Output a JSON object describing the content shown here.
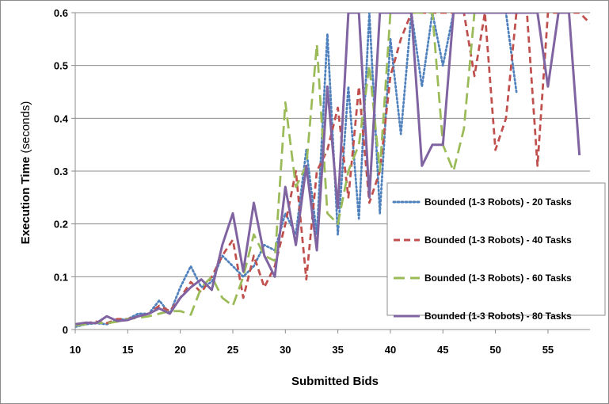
{
  "chart_data": {
    "type": "line",
    "xlabel": "Submitted Bids",
    "ylabel": "Execution Time",
    "ylabel_unit": "(seconds)",
    "xlim": [
      10,
      59
    ],
    "ylim": [
      0,
      0.6
    ],
    "x_ticks": [
      10,
      15,
      20,
      25,
      30,
      35,
      40,
      45,
      50,
      55
    ],
    "y_ticks": [
      0,
      0.1,
      0.2,
      0.3,
      0.4,
      0.5,
      0.6
    ],
    "y_tick_labels": [
      "0",
      "0.1",
      "0.2",
      "0.3",
      "0.4",
      "0.5",
      "0.6"
    ],
    "grid": "horizontal",
    "legend_position": "right",
    "series": [
      {
        "name": "Bounded (1-3 Robots) - 20 Tasks",
        "color": "#4f81bd",
        "dash": "dotted",
        "x": [
          10,
          11,
          12,
          13,
          14,
          15,
          16,
          17,
          18,
          19,
          20,
          21,
          22,
          23,
          24,
          25,
          26,
          27,
          28,
          29,
          30,
          31,
          32,
          33,
          34,
          35,
          36,
          37,
          38,
          39,
          40,
          41,
          42,
          43,
          44,
          45,
          46,
          47,
          48,
          49,
          50,
          51,
          52
        ],
        "y": [
          0.005,
          0.01,
          0.012,
          0.01,
          0.018,
          0.02,
          0.03,
          0.03,
          0.055,
          0.03,
          0.08,
          0.12,
          0.08,
          0.09,
          0.14,
          0.12,
          0.1,
          0.12,
          0.16,
          0.15,
          0.22,
          0.18,
          0.34,
          0.18,
          0.56,
          0.18,
          0.46,
          0.21,
          0.6,
          0.22,
          0.55,
          0.37,
          0.6,
          0.46,
          0.6,
          0.5,
          0.6,
          0.6,
          0.6,
          0.6,
          0.6,
          0.6,
          0.45
        ]
      },
      {
        "name": "Bounded (1-3 Robots) - 40 Tasks",
        "color": "#c0504d",
        "dash": "dashed",
        "x": [
          10,
          11,
          12,
          13,
          14,
          15,
          16,
          17,
          18,
          19,
          20,
          21,
          22,
          23,
          24,
          25,
          26,
          27,
          28,
          29,
          30,
          31,
          32,
          33,
          34,
          35,
          36,
          37,
          38,
          39,
          40,
          41,
          42,
          43,
          44,
          45,
          46,
          47,
          48,
          49,
          50,
          51,
          52,
          53,
          54,
          55,
          56,
          57,
          58,
          59
        ],
        "y": [
          0.01,
          0.012,
          0.015,
          0.012,
          0.02,
          0.02,
          0.025,
          0.03,
          0.045,
          0.035,
          0.06,
          0.09,
          0.07,
          0.1,
          0.14,
          0.17,
          0.06,
          0.14,
          0.08,
          0.12,
          0.2,
          0.3,
          0.095,
          0.3,
          0.34,
          0.42,
          0.25,
          0.46,
          0.24,
          0.3,
          0.48,
          0.55,
          0.6,
          0.6,
          0.6,
          0.6,
          0.6,
          0.6,
          0.48,
          0.6,
          0.34,
          0.4,
          0.6,
          0.6,
          0.31,
          0.6,
          0.6,
          0.6,
          0.6,
          0.58
        ]
      },
      {
        "name": "Bounded (1-3 Robots) - 60 Tasks",
        "color": "#9bbb59",
        "dash": "longdash",
        "x": [
          10,
          11,
          12,
          13,
          14,
          15,
          16,
          17,
          18,
          19,
          20,
          21,
          22,
          23,
          24,
          25,
          26,
          27,
          28,
          29,
          30,
          31,
          32,
          33,
          34,
          35,
          36,
          37,
          38,
          39,
          40,
          41,
          42,
          43,
          44,
          45,
          46,
          47,
          48
        ],
        "y": [
          0.008,
          0.01,
          0.013,
          0.012,
          0.015,
          0.02,
          0.022,
          0.025,
          0.03,
          0.035,
          0.035,
          0.028,
          0.08,
          0.1,
          0.06,
          0.045,
          0.1,
          0.18,
          0.14,
          0.13,
          0.43,
          0.27,
          0.31,
          0.54,
          0.22,
          0.2,
          0.3,
          0.35,
          0.5,
          0.3,
          0.6,
          0.6,
          0.6,
          0.6,
          0.6,
          0.35,
          0.3,
          0.38,
          0.6
        ]
      },
      {
        "name": "Bounded (1-3 Robots) - 80 Tasks",
        "color": "#8064a2",
        "dash": "solid",
        "x": [
          10,
          11,
          12,
          13,
          14,
          15,
          16,
          17,
          18,
          19,
          20,
          21,
          22,
          23,
          24,
          25,
          26,
          27,
          28,
          29,
          30,
          31,
          32,
          33,
          34,
          35,
          36,
          37,
          38,
          39,
          40,
          41,
          42,
          43,
          44,
          45,
          46,
          47,
          48,
          49,
          50,
          51,
          52,
          53,
          54,
          55,
          56,
          57,
          58
        ],
        "y": [
          0.01,
          0.013,
          0.012,
          0.025,
          0.016,
          0.018,
          0.025,
          0.03,
          0.04,
          0.03,
          0.06,
          0.08,
          0.095,
          0.075,
          0.16,
          0.22,
          0.11,
          0.24,
          0.14,
          0.1,
          0.27,
          0.16,
          0.31,
          0.15,
          0.46,
          0.23,
          0.6,
          0.6,
          0.25,
          0.6,
          0.6,
          0.6,
          0.6,
          0.31,
          0.35,
          0.35,
          0.6,
          0.6,
          0.6,
          0.6,
          0.6,
          0.6,
          0.6,
          0.6,
          0.6,
          0.46,
          0.6,
          0.6,
          0.33
        ]
      }
    ]
  }
}
